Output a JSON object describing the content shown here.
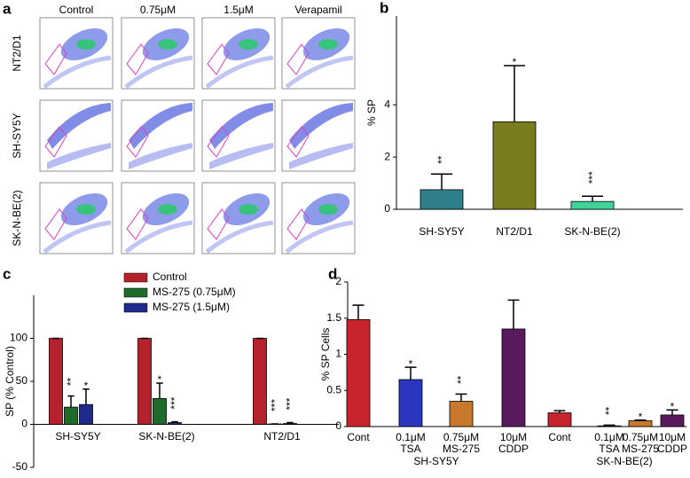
{
  "flow_panel": {
    "panel_label": "a",
    "columns": [
      "Control",
      "0.75μM",
      "1.5μM",
      "Verapamil"
    ],
    "rows": [
      "NT2/D1",
      "SH-SY5Y",
      "SK-N-BE(2)"
    ]
  },
  "chart_data": [
    {
      "type": "bar",
      "panel_label": "b",
      "y_label": "% SP",
      "categories": [
        "SH-SY5Y",
        "NT2/D1",
        "SK-N-BE(2)"
      ],
      "values": [
        0.75,
        3.35,
        0.3
      ],
      "errors": [
        0.6,
        2.15,
        0.2
      ],
      "colors": [
        "#2f7f8a",
        "#7a7a1e",
        "#3fd39a"
      ],
      "annotations": [
        "**",
        "*",
        "***"
      ],
      "ylim": [
        0,
        7.4
      ],
      "yticks": [
        0,
        2,
        4
      ]
    },
    {
      "type": "bar",
      "panel_label": "c",
      "y_label": "SP (% Control)",
      "categories": [
        "SH-SY5Y",
        "SK-N-BE(2)",
        "NT2/D1"
      ],
      "series": [
        {
          "name": "Control",
          "color": "#b5222b",
          "values": [
            100,
            100,
            100
          ],
          "errors": [
            0,
            0,
            0
          ],
          "annotations": [
            null,
            null,
            null
          ]
        },
        {
          "name": "MS-275 (0.75μM)",
          "color": "#1f6b2a",
          "values": [
            20,
            30,
            0.5
          ],
          "errors": [
            13,
            18,
            0
          ],
          "annotations": [
            "**",
            "*",
            "***"
          ]
        },
        {
          "name": "MS-275 (1.5μM)",
          "color": "#1f2a8a",
          "values": [
            23,
            2,
            1
          ],
          "errors": [
            18,
            1,
            1
          ],
          "annotations": [
            "*",
            "***",
            "***"
          ]
        }
      ],
      "ylim": [
        -50,
        150
      ],
      "yticks": [
        -50,
        0,
        50,
        100
      ]
    },
    {
      "type": "bar",
      "panel_label": "d",
      "y_label": "% SP Cells",
      "categories": [
        [
          "Cont"
        ],
        [
          "0.1μM",
          "TSA"
        ],
        [
          "0.75μM",
          "MS-275"
        ],
        [
          "10μM",
          "CDDP"
        ],
        [
          "Cont"
        ],
        [
          "0.1μM",
          "TSA"
        ],
        [
          "0.75μM",
          "MS-275"
        ],
        [
          "10μM",
          "CDDP"
        ]
      ],
      "groups": [
        "SH-SY5Y",
        "SK-N-BE(2)"
      ],
      "values": [
        1.48,
        0.65,
        0.35,
        1.35,
        0.19,
        0.01,
        0.08,
        0.16
      ],
      "errors": [
        0.2,
        0.17,
        0.1,
        0.4,
        0.03,
        0.01,
        0.01,
        0.07
      ],
      "colors": [
        "#c8242b",
        "#2a35c0",
        "#c8782a",
        "#5a1a5e",
        "#c8242b",
        "#2a35c0",
        "#c8782a",
        "#5a1a5e"
      ],
      "annotations": [
        null,
        "*",
        "**",
        null,
        null,
        "**",
        "*",
        "*"
      ],
      "ylim": [
        0,
        2
      ],
      "yticks": [
        0,
        0.5,
        1,
        1.5,
        2
      ]
    }
  ]
}
